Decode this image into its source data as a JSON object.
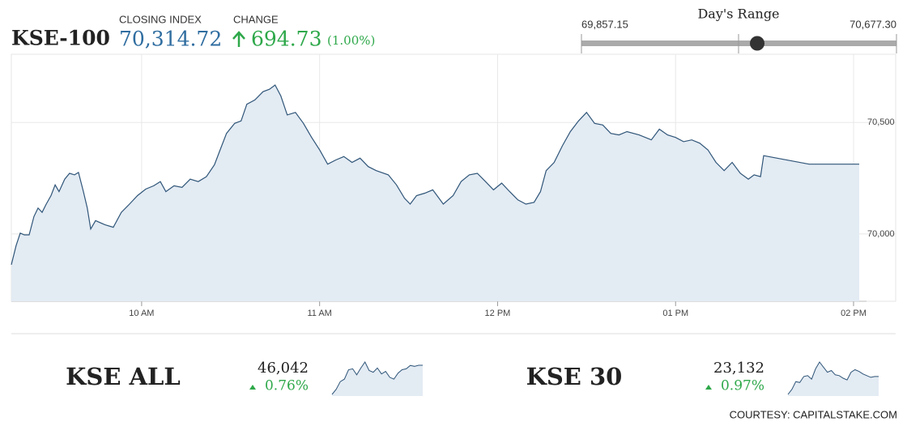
{
  "header": {
    "symbol": "KSE-100",
    "closing_label": "CLOSING INDEX",
    "closing_index": {
      "value": 70314.72,
      "label": "70,314.72"
    },
    "change_label": "CHANGE",
    "change": "694.73",
    "change_pct": "(1.00%)"
  },
  "day_range": {
    "title": "Day's Range",
    "low": {
      "value": 69857.15,
      "label": "69,857.15"
    },
    "high": {
      "value": 70677.3,
      "label": "70,677.30"
    }
  },
  "chart_data": {
    "type": "line",
    "x": [
      9.268,
      9.295,
      9.318,
      9.341,
      9.368,
      9.395,
      9.418,
      9.441,
      9.464,
      9.491,
      9.514,
      9.536,
      9.568,
      9.595,
      9.623,
      9.645,
      9.673,
      9.695,
      9.714,
      9.741,
      9.795,
      9.841,
      9.886,
      9.932,
      9.977,
      10.023,
      10.068,
      10.105,
      10.136,
      10.182,
      10.227,
      10.273,
      10.318,
      10.364,
      10.409,
      10.441,
      10.477,
      10.523,
      10.559,
      10.591,
      10.636,
      10.682,
      10.718,
      10.75,
      10.782,
      10.818,
      10.864,
      10.909,
      10.955,
      11.0,
      11.045,
      11.091,
      11.136,
      11.182,
      11.227,
      11.273,
      11.318,
      11.386,
      11.432,
      11.477,
      11.509,
      11.545,
      11.591,
      11.636,
      11.695,
      11.75,
      11.795,
      11.841,
      11.886,
      11.932,
      11.977,
      12.023,
      12.068,
      12.114,
      12.159,
      12.205,
      12.241,
      12.273,
      12.318,
      12.364,
      12.409,
      12.455,
      12.5,
      12.545,
      12.591,
      12.636,
      12.682,
      12.727,
      12.795,
      12.864,
      12.909,
      12.955,
      13.0,
      13.045,
      13.091,
      13.136,
      13.182,
      13.227,
      13.273,
      13.318,
      13.364,
      13.409,
      13.441,
      13.477,
      13.495,
      13.75,
      14.032
    ],
    "series": [
      {
        "color": "#2f5578",
        "fill": "#e3ebf3",
        "values": [
          69862,
          69948,
          70004,
          69996,
          69996,
          70078,
          70116,
          70097,
          70134,
          70172,
          70220,
          70190,
          70246,
          70272,
          70265,
          70276,
          70190,
          70116,
          70022,
          70060,
          70041,
          70030,
          70097,
          70134,
          70172,
          70201,
          70216,
          70235,
          70190,
          70216,
          70209,
          70246,
          70235,
          70257,
          70310,
          70377,
          70451,
          70496,
          70507,
          70582,
          70601,
          70638,
          70649,
          70668,
          70619,
          70534,
          70545,
          70496,
          70433,
          70377,
          70313,
          70332,
          70347,
          70321,
          70340,
          70302,
          70284,
          70265,
          70220,
          70160,
          70134,
          70172,
          70183,
          70198,
          70134,
          70172,
          70235,
          70265,
          70272,
          70235,
          70198,
          70228,
          70190,
          70153,
          70134,
          70142,
          70190,
          70284,
          70321,
          70395,
          70459,
          70507,
          70545,
          70496,
          70489,
          70451,
          70444,
          70459,
          70444,
          70422,
          70470,
          70444,
          70433,
          70414,
          70422,
          70407,
          70377,
          70321,
          70284,
          70321,
          70272,
          70246,
          70265,
          70257,
          70351,
          70313,
          70313
        ]
      }
    ],
    "xlim": [
      9.268,
      14.05
    ],
    "ylim": [
      69698,
      70806
    ],
    "xticks": [
      {
        "value": 10,
        "label": "10 AM"
      },
      {
        "value": 11,
        "label": "11 AM"
      },
      {
        "value": 12,
        "label": "12 PM"
      },
      {
        "value": 13,
        "label": "01 PM"
      },
      {
        "value": 14,
        "label": "02 PM"
      }
    ],
    "yticks": [
      {
        "value": 70000,
        "label": "70,000"
      },
      {
        "value": 70500,
        "label": "70,500"
      }
    ],
    "grid": true
  },
  "sub_indices": [
    {
      "name": "KSE ALL",
      "value": "46,042",
      "change": "0.76%",
      "spark": [
        45700,
        45760,
        45850,
        45880,
        45990,
        46000,
        45930,
        46010,
        46080,
        45980,
        45960,
        46010,
        45940,
        45970,
        45900,
        45880,
        45950,
        45990,
        46000,
        46040,
        46030,
        46042,
        46042
      ]
    },
    {
      "name": "KSE 30",
      "value": "23,132",
      "change": "0.97%",
      "spark": [
        22800,
        22860,
        22950,
        22940,
        23010,
        23020,
        22980,
        23100,
        23180,
        23120,
        23060,
        23080,
        23030,
        23020,
        22990,
        22970,
        23060,
        23090,
        23070,
        23040,
        23020,
        23000,
        23010,
        23010
      ]
    }
  ],
  "footer": "COURTESY: CAPITALSTAKE.COM"
}
